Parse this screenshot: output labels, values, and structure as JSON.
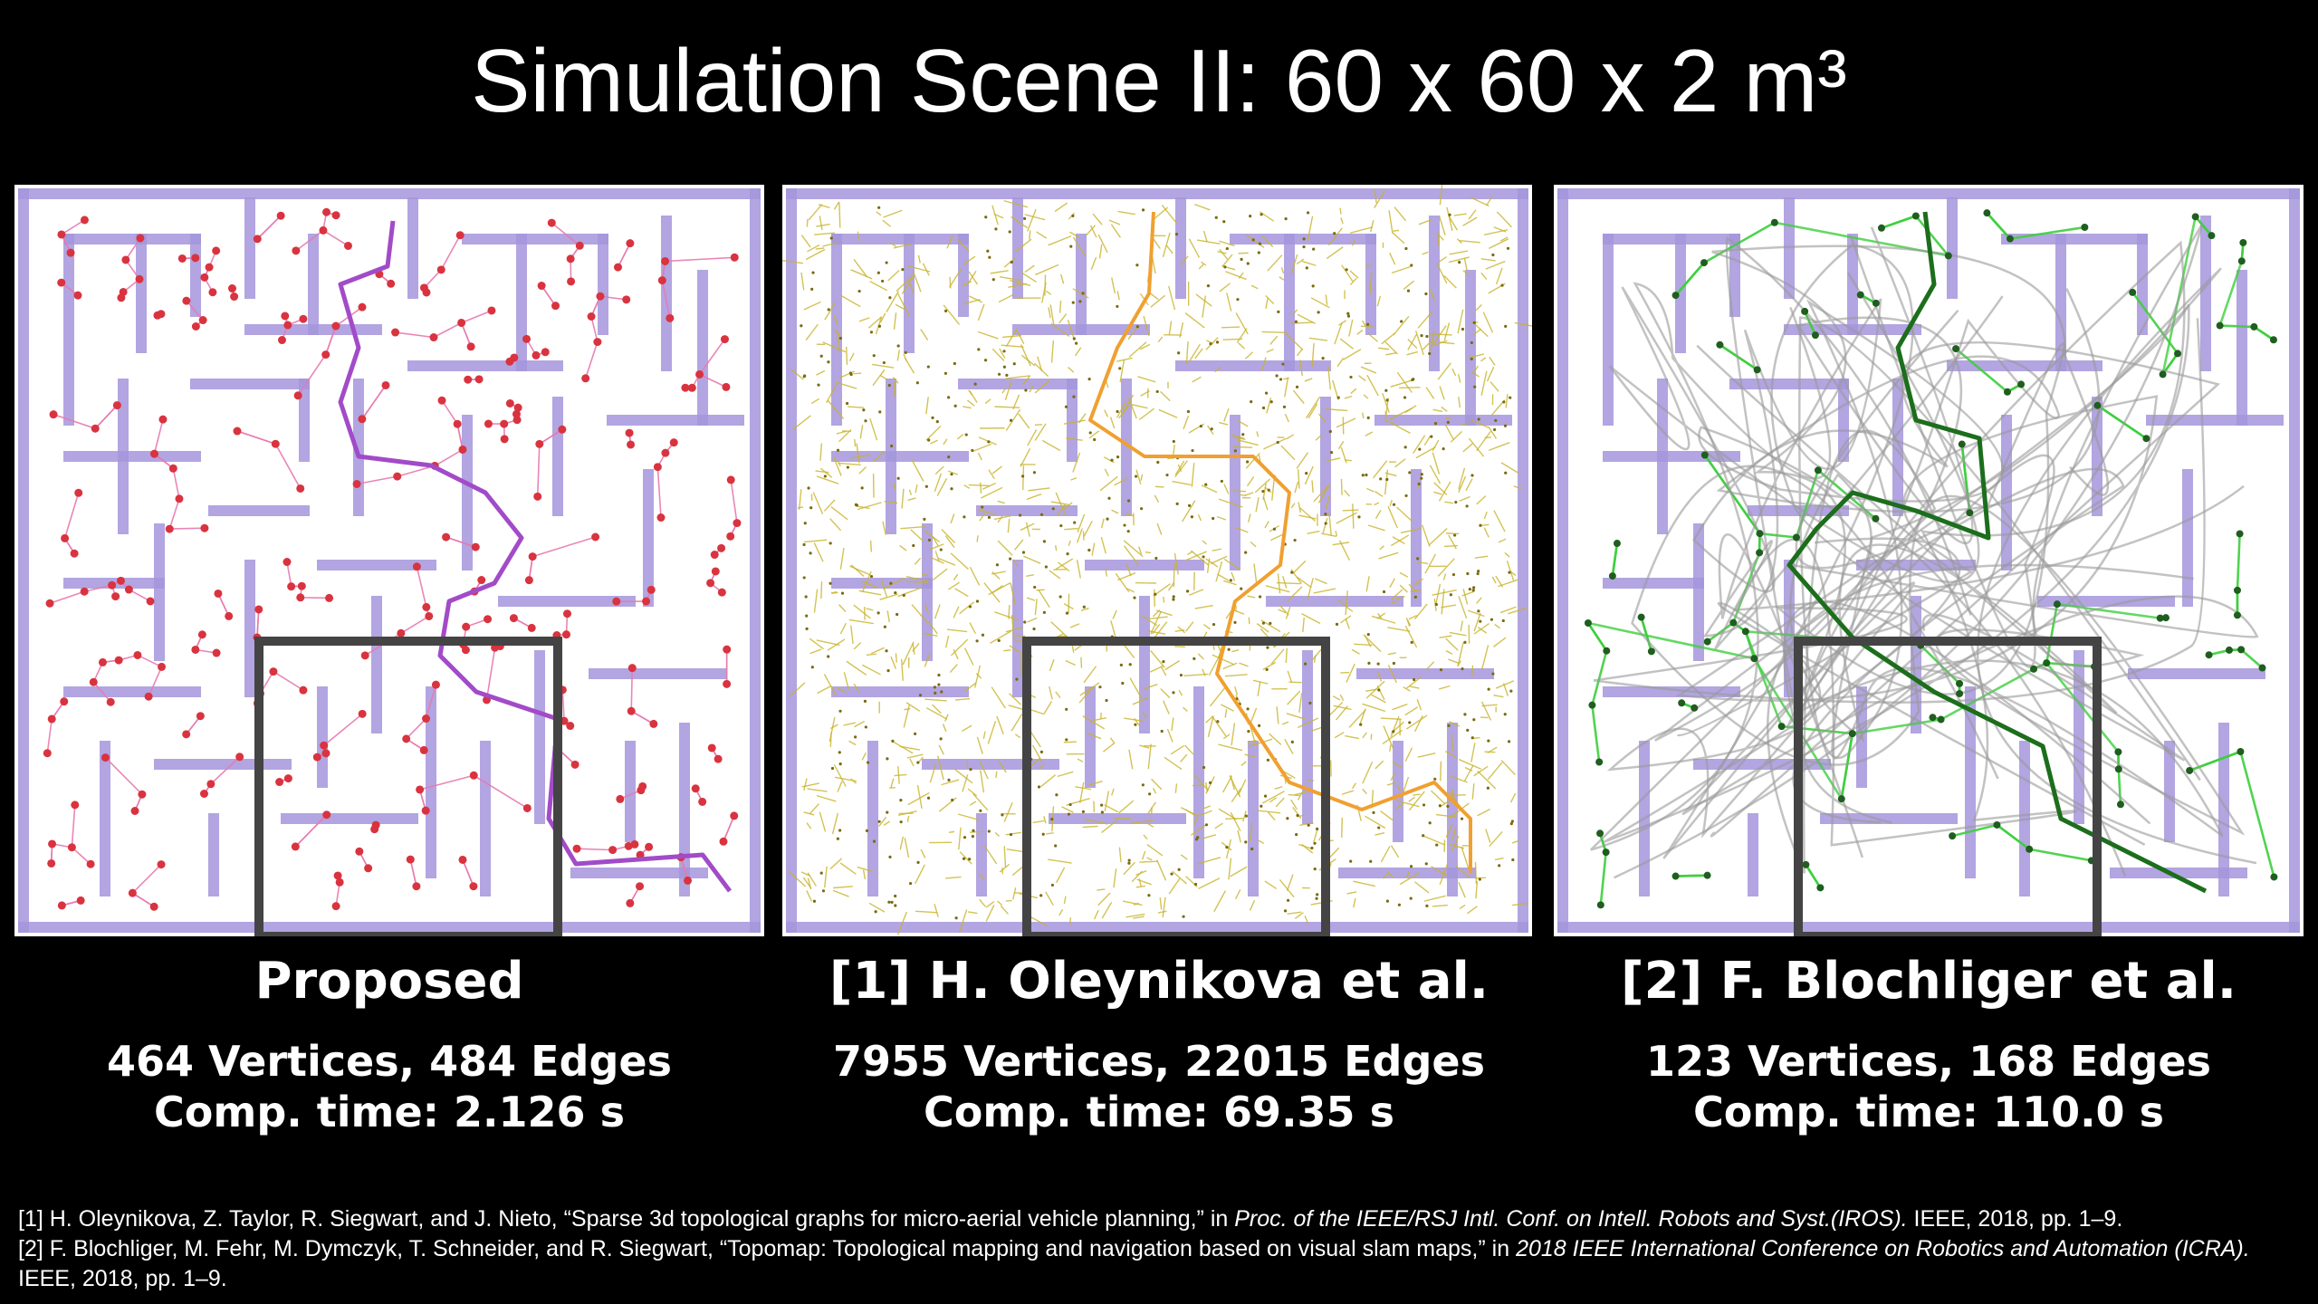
{
  "title": "Simulation Scene II: 60 x 60 x 2 m³",
  "panels": [
    {
      "name": "Proposed",
      "vertices_edges": "464 Vertices, 484 Edges",
      "comp_time": "Comp. time: 2.126 s",
      "graph_color": "#d9333f",
      "edge_color": "#e77ab0",
      "path_color": "#a24bc8"
    },
    {
      "name": "[1] H. Oleynikova et al.",
      "vertices_edges": "7955 Vertices, 22015 Edges",
      "comp_time": "Comp. time: 69.35 s",
      "graph_color": "#c9b32a",
      "edge_color": "#c9b32a",
      "path_color": "#f0a030"
    },
    {
      "name": "[2] F. Blochliger et al.",
      "vertices_edges": "123 Vertices, 168 Edges",
      "comp_time": "Comp. time: 110.0 s",
      "graph_color": "#1f5e1f",
      "edge_color": "#3ecf3e",
      "path_color": "#1c6e1c"
    }
  ],
  "colors": {
    "background": "#000000",
    "wall": "#a596dc",
    "highlight_box": "#444444"
  },
  "references": {
    "ref1_plain": "[1] H. Oleynikova, Z. Taylor, R. Siegwart, and J. Nieto, “Sparse 3d topological graphs for micro-aerial vehicle planning,” in ",
    "ref1_italic": "Proc. of the IEEE/RSJ Intl. Conf. on Intell. Robots and Syst.(IROS).",
    "ref1_tail": " IEEE, 2018, pp. 1–9.",
    "ref2_plain": "[2] F. Blochliger, M. Fehr, M. Dymczyk, T. Schneider, and R. Siegwart, “Topomap: Topological mapping and navigation based on visual slam maps,” in ",
    "ref2_italic": "2018 IEEE International Conference on Robotics and Automation (ICRA).",
    "ref2_tail": " IEEE, 2018, pp. 1–9."
  }
}
